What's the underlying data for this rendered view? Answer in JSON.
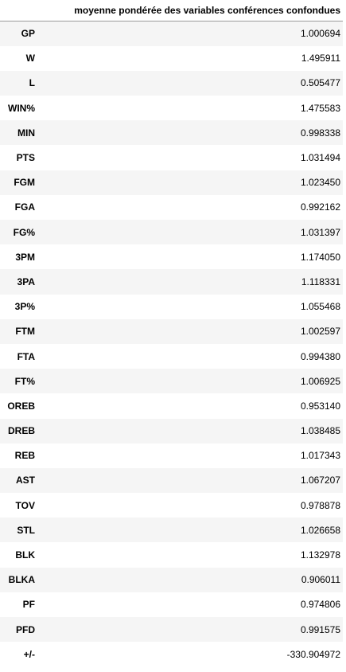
{
  "table": {
    "columns": [
      "",
      "moyenne pondérée des variables conférences confondues"
    ],
    "rows": [
      {
        "label": "GP",
        "value": "1.000694"
      },
      {
        "label": "W",
        "value": "1.495911"
      },
      {
        "label": "L",
        "value": "0.505477"
      },
      {
        "label": "WIN%",
        "value": "1.475583"
      },
      {
        "label": "MIN",
        "value": "0.998338"
      },
      {
        "label": "PTS",
        "value": "1.031494"
      },
      {
        "label": "FGM",
        "value": "1.023450"
      },
      {
        "label": "FGA",
        "value": "0.992162"
      },
      {
        "label": "FG%",
        "value": "1.031397"
      },
      {
        "label": "3PM",
        "value": "1.174050"
      },
      {
        "label": "3PA",
        "value": "1.118331"
      },
      {
        "label": "3P%",
        "value": "1.055468"
      },
      {
        "label": "FTM",
        "value": "1.002597"
      },
      {
        "label": "FTA",
        "value": "0.994380"
      },
      {
        "label": "FT%",
        "value": "1.006925"
      },
      {
        "label": "OREB",
        "value": "0.953140"
      },
      {
        "label": "DREB",
        "value": "1.038485"
      },
      {
        "label": "REB",
        "value": "1.017343"
      },
      {
        "label": "AST",
        "value": "1.067207"
      },
      {
        "label": "TOV",
        "value": "0.978878"
      },
      {
        "label": "STL",
        "value": "1.026658"
      },
      {
        "label": "BLK",
        "value": "1.132978"
      },
      {
        "label": "BLKA",
        "value": "0.906011"
      },
      {
        "label": "PF",
        "value": "0.974806"
      },
      {
        "label": "PFD",
        "value": "0.991575"
      },
      {
        "label": "+/-",
        "value": "-330.904972"
      }
    ]
  },
  "colors": {
    "stripe": "#f5f5f5",
    "background": "#ffffff",
    "header_rule": "#9a9a9a",
    "text": "#000000"
  }
}
